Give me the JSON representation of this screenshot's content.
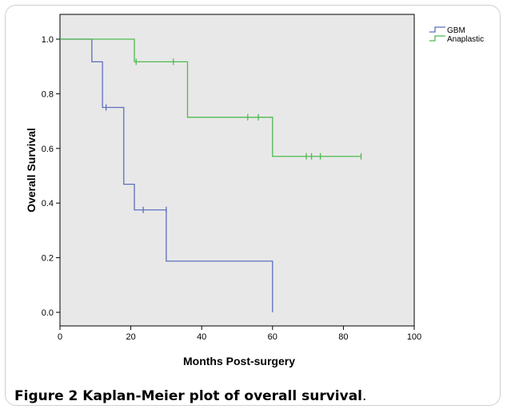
{
  "caption": {
    "label": "Figure 2",
    "text": " Kaplan-Meier plot of overall survival",
    "end": "."
  },
  "chart_data": {
    "type": "line",
    "step": true,
    "title": "",
    "xlabel": "Months Post-surgery",
    "ylabel": "Overall Survival",
    "xlim": [
      0,
      100
    ],
    "ylim": [
      0,
      1.0
    ],
    "xticks": [
      "0",
      "20",
      "40",
      "60",
      "80",
      "100"
    ],
    "yticks": [
      "0.0",
      "0.2",
      "0.4",
      "0.6",
      "0.8",
      "1.0"
    ],
    "grid": false,
    "legend": "top-right",
    "background": "#e8e8e8",
    "series": [
      {
        "name": "GBM",
        "color": "#5b6fc0",
        "steps": [
          [
            0,
            1.0
          ],
          [
            9,
            0.917
          ],
          [
            12,
            0.75
          ],
          [
            18,
            0.469
          ],
          [
            21,
            0.375
          ],
          [
            30,
            0.1875
          ],
          [
            60,
            0.0
          ]
        ],
        "end_x": 60,
        "censored": [
          [
            13,
            0.75
          ],
          [
            23.5,
            0.375
          ],
          [
            30,
            0.375
          ]
        ]
      },
      {
        "name": "Anaplastic",
        "color": "#4fba4f",
        "steps": [
          [
            0,
            1.0
          ],
          [
            21,
            0.917
          ],
          [
            36,
            0.714
          ],
          [
            60,
            0.571
          ]
        ],
        "end_x": 85,
        "censored": [
          [
            21.5,
            0.917
          ],
          [
            32,
            0.917
          ],
          [
            53,
            0.714
          ],
          [
            56,
            0.714
          ],
          [
            69.5,
            0.571
          ],
          [
            71,
            0.571
          ],
          [
            73.5,
            0.571
          ],
          [
            85,
            0.571
          ]
        ]
      }
    ]
  }
}
